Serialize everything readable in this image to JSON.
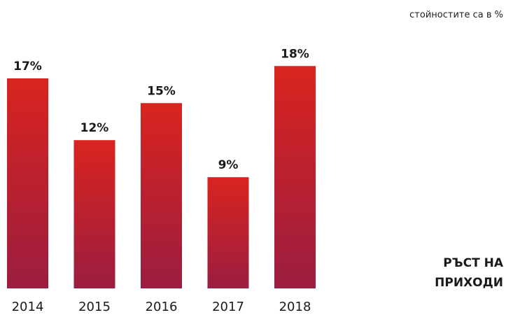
{
  "note": "стойностите са в %",
  "title_lines": [
    "РЪСТ НА",
    "ПРИХОДИ"
  ],
  "colors": {
    "bar_top": "#d9241f",
    "bar_bottom": "#9b1d40",
    "text": "#1a1a1a"
  },
  "chart_data": {
    "type": "bar",
    "categories": [
      "2014",
      "2015",
      "2016",
      "2017",
      "2018"
    ],
    "values": [
      17,
      12,
      15,
      9,
      18
    ],
    "data_labels": [
      "17%",
      "12%",
      "15%",
      "9%",
      "18%"
    ],
    "title": "РЪСТ НА ПРИХОДИ",
    "xlabel": "",
    "ylabel": "",
    "unit": "%",
    "ylim": [
      0,
      20
    ],
    "grid": false
  }
}
